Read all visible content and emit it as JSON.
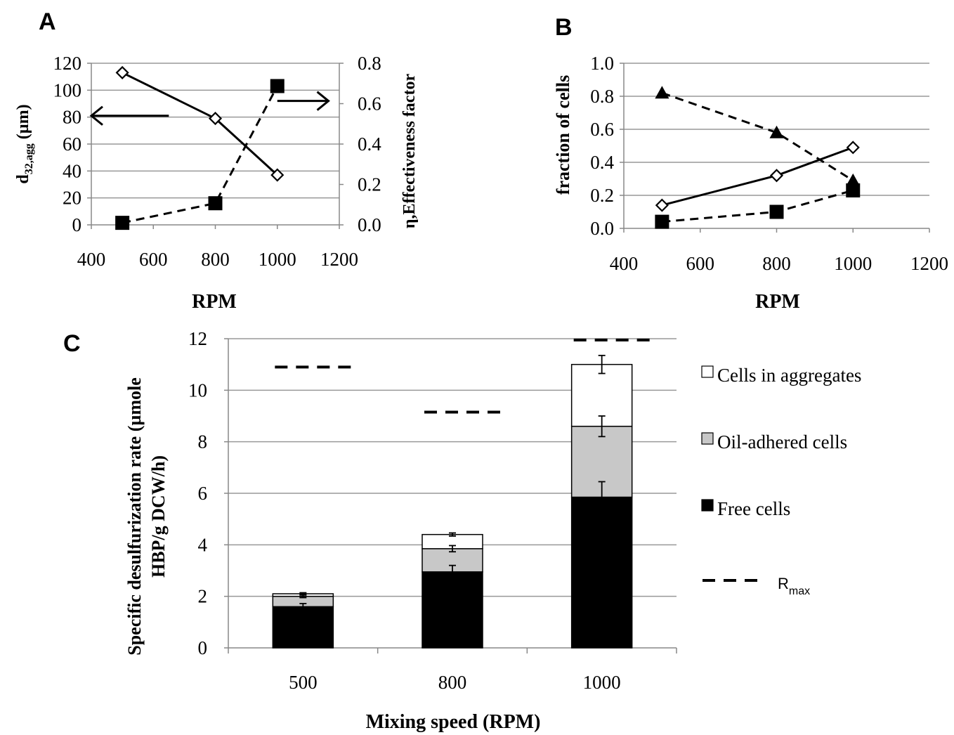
{
  "chart_data": [
    {
      "panel": "A",
      "type": "line",
      "xlabel": "RPM",
      "xlim": [
        400,
        1200
      ],
      "xticks": [
        400,
        600,
        800,
        1000,
        1200
      ],
      "ylim": [
        0,
        120
      ],
      "yticks": [
        0,
        20,
        40,
        60,
        80,
        100,
        120
      ],
      "y2lim": [
        0,
        0.8
      ],
      "y2ticks": [
        "0.0",
        "0.2",
        "0.4",
        "0.6",
        "0.8"
      ],
      "ylabel_main": "d",
      "ylabel_sub": "32,agg",
      "ylabel_rest": " (µm)",
      "y2label": "η,Effectiveness factor",
      "grid": true,
      "series": [
        {
          "axis": "left",
          "style": "solid",
          "marker": "open-diamond",
          "x": [
            500,
            800,
            1000
          ],
          "y": [
            113,
            79,
            37
          ]
        },
        {
          "axis": "right",
          "style": "dashed",
          "marker": "filled-square",
          "x": [
            500,
            800,
            1000
          ],
          "y": [
            0.01,
            0.107,
            0.687
          ]
        }
      ],
      "arrows": [
        {
          "direction": "left",
          "x_from": 650,
          "x_to": 400,
          "y": 81
        },
        {
          "direction": "right",
          "x_from": 1000,
          "x_to": 1165,
          "y": 92
        }
      ]
    },
    {
      "panel": "B",
      "type": "line",
      "xlabel": "RPM",
      "xlim": [
        400,
        1200
      ],
      "xticks": [
        400,
        600,
        800,
        1000,
        1200
      ],
      "ylim": [
        0,
        1.0
      ],
      "yticks": [
        "0.0",
        "0.2",
        "0.4",
        "0.6",
        "0.8",
        "1.0"
      ],
      "ylabel": "fraction of cells",
      "grid": true,
      "series": [
        {
          "style": "dashed",
          "marker": "filled-triangle",
          "x": [
            500,
            800,
            1000
          ],
          "y": [
            0.82,
            0.58,
            0.29
          ]
        },
        {
          "style": "solid",
          "marker": "open-diamond",
          "x": [
            500,
            800,
            1000
          ],
          "y": [
            0.14,
            0.32,
            0.49
          ]
        },
        {
          "style": "dashed",
          "marker": "filled-square",
          "x": [
            500,
            800,
            1000
          ],
          "y": [
            0.04,
            0.1,
            0.23
          ]
        }
      ]
    },
    {
      "panel": "C",
      "type": "bar",
      "stacked": true,
      "xlabel": "Mixing speed (RPM)",
      "ylabel_line1": "Specific desulfurization rate (µmole",
      "ylabel_line2": "HBP/g DCW/h)",
      "ylim": [
        0,
        12
      ],
      "yticks": [
        0,
        2,
        4,
        6,
        8,
        10,
        12
      ],
      "categories": [
        "500",
        "800",
        "1000"
      ],
      "series": [
        {
          "name": "Free cells",
          "color": "#000000",
          "values": [
            1.6,
            2.95,
            5.85
          ],
          "errors": [
            0.12,
            0.25,
            0.6
          ]
        },
        {
          "name": "Oil-adhered cells",
          "color": "#c8c8c8",
          "values": [
            0.4,
            0.9,
            2.75
          ],
          "errors": [
            0.05,
            0.12,
            0.4
          ]
        },
        {
          "name": "Cells in aggregates",
          "color": "#ffffff",
          "values": [
            0.1,
            0.55,
            2.4
          ],
          "errors": [
            0.04,
            0.06,
            0.35
          ]
        }
      ],
      "rmax": {
        "label": "R",
        "label_sub": "max",
        "values": [
          10.9,
          9.15,
          11.95
        ]
      },
      "legend_position": "right"
    }
  ],
  "panel_labels": [
    "A",
    "B",
    "C"
  ]
}
